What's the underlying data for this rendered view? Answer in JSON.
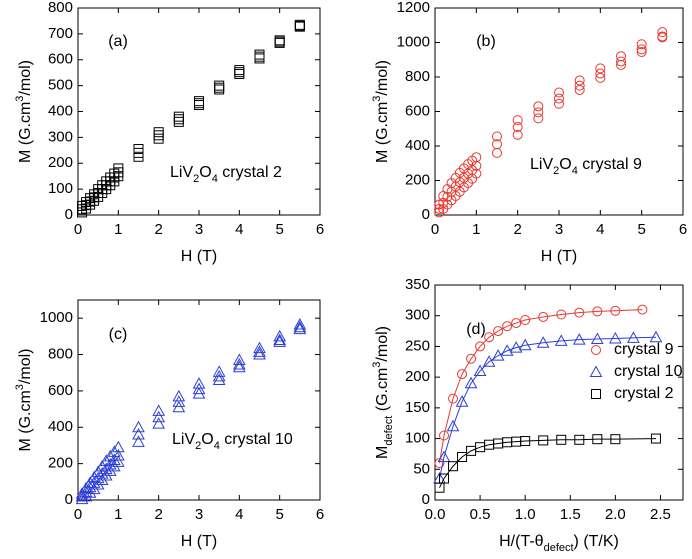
{
  "chart_data": [
    {
      "type": "scatter",
      "panel_label": "(a)",
      "xlabel": "H (T)",
      "ylabel": [
        {
          "text": "M  (G.cm"
        },
        {
          "text": "3",
          "sup": true
        },
        {
          "text": "/mol)"
        }
      ],
      "annotation": [
        {
          "text": "LiV"
        },
        {
          "text": "2",
          "sub": true
        },
        {
          "text": "O"
        },
        {
          "text": "4",
          "sub": true
        },
        {
          "text": " crystal 2"
        }
      ],
      "xlim": [
        0,
        6
      ],
      "xticks": [
        0,
        1,
        2,
        3,
        4,
        5,
        6
      ],
      "ylim": [
        0,
        800
      ],
      "yticks": [
        0,
        100,
        200,
        300,
        400,
        500,
        600,
        700,
        800
      ],
      "x": [
        0.1,
        0.2,
        0.3,
        0.4,
        0.5,
        0.6,
        0.7,
        0.8,
        0.9,
        1.0,
        1.5,
        2,
        2.5,
        3,
        3.5,
        4,
        4.5,
        5,
        5.5
      ],
      "series": [
        {
          "color": "#000000",
          "marker": "square",
          "values": [
            35,
            50,
            65,
            80,
            100,
            115,
            130,
            145,
            160,
            180,
            255,
            320,
            380,
            440,
            500,
            560,
            620,
            675,
            735
          ]
        },
        {
          "color": "#000000",
          "marker": "square",
          "values": [
            22,
            38,
            52,
            68,
            85,
            100,
            115,
            130,
            145,
            165,
            240,
            308,
            370,
            432,
            492,
            552,
            612,
            670,
            731
          ]
        },
        {
          "color": "#000000",
          "marker": "square",
          "values": [
            10,
            25,
            40,
            55,
            70,
            85,
            100,
            115,
            130,
            150,
            225,
            295,
            360,
            425,
            485,
            545,
            605,
            665,
            728
          ]
        }
      ]
    },
    {
      "type": "scatter",
      "panel_label": "(b)",
      "xlabel": "H (T)",
      "ylabel": [
        {
          "text": "M  (G.cm"
        },
        {
          "text": "3",
          "sup": true
        },
        {
          "text": "/mol)"
        }
      ],
      "annotation": [
        {
          "text": "LiV"
        },
        {
          "text": "2",
          "sub": true
        },
        {
          "text": "O"
        },
        {
          "text": "4",
          "sub": true
        },
        {
          "text": " crystal 9"
        }
      ],
      "xlim": [
        0,
        6
      ],
      "xticks": [
        0,
        1,
        2,
        3,
        4,
        5,
        6
      ],
      "ylim": [
        0,
        1200
      ],
      "yticks": [
        0,
        200,
        400,
        600,
        800,
        1000,
        1200
      ],
      "x": [
        0.1,
        0.2,
        0.3,
        0.4,
        0.5,
        0.6,
        0.7,
        0.8,
        0.9,
        1.0,
        1.5,
        2,
        2.5,
        3,
        3.5,
        4,
        4.5,
        5,
        5.5
      ],
      "series": [
        {
          "color": "#e8392f",
          "marker": "circle",
          "values": [
            60,
            110,
            150,
            185,
            215,
            245,
            270,
            295,
            315,
            335,
            455,
            550,
            630,
            710,
            780,
            850,
            920,
            990,
            1060
          ]
        },
        {
          "color": "#e8392f",
          "marker": "circle",
          "values": [
            35,
            70,
            105,
            135,
            165,
            190,
            215,
            240,
            260,
            285,
            410,
            510,
            595,
            675,
            750,
            820,
            890,
            960,
            1035
          ]
        },
        {
          "color": "#e8392f",
          "marker": "circle",
          "values": [
            15,
            35,
            60,
            85,
            110,
            135,
            160,
            185,
            210,
            240,
            360,
            465,
            560,
            645,
            725,
            795,
            870,
            945,
            1030
          ]
        }
      ]
    },
    {
      "type": "scatter",
      "panel_label": "(c)",
      "xlabel": "H (T)",
      "ylabel": [
        {
          "text": "M (G.cm"
        },
        {
          "text": "3",
          "sup": true
        },
        {
          "text": "/mol)"
        }
      ],
      "annotation": [
        {
          "text": "LiV"
        },
        {
          "text": "2",
          "sub": true
        },
        {
          "text": "O"
        },
        {
          "text": "4",
          "sub": true
        },
        {
          "text": " crystal 10"
        }
      ],
      "xlim": [
        0,
        6
      ],
      "xticks": [
        0,
        1,
        2,
        3,
        4,
        5,
        6
      ],
      "ylim": [
        0,
        1100
      ],
      "yticks": [
        0,
        200,
        400,
        600,
        800,
        1000
      ],
      "x": [
        0.1,
        0.2,
        0.3,
        0.4,
        0.5,
        0.6,
        0.7,
        0.8,
        0.9,
        1.0,
        1.5,
        2,
        2.5,
        3,
        3.5,
        4,
        4.5,
        5,
        5.5
      ],
      "series": [
        {
          "color": "#2b3fd6",
          "marker": "triangle",
          "values": [
            35,
            65,
            95,
            125,
            155,
            185,
            215,
            240,
            265,
            290,
            400,
            490,
            570,
            640,
            705,
            770,
            835,
            900,
            965
          ]
        },
        {
          "color": "#2b3fd6",
          "marker": "triangle",
          "values": [
            20,
            45,
            70,
            95,
            120,
            145,
            170,
            195,
            220,
            245,
            360,
            455,
            540,
            610,
            680,
            745,
            815,
            880,
            950
          ]
        },
        {
          "color": "#2b3fd6",
          "marker": "triangle",
          "values": [
            5,
            20,
            40,
            60,
            85,
            110,
            135,
            160,
            185,
            210,
            320,
            420,
            510,
            585,
            660,
            730,
            800,
            870,
            940
          ]
        }
      ]
    },
    {
      "type": "scatter",
      "panel_label": "(d)",
      "xlabel": [
        {
          "text": "H/(T-θ"
        },
        {
          "text": "defect",
          "sub": true
        },
        {
          "text": ")    (T/K)"
        }
      ],
      "ylabel": [
        {
          "text": "M"
        },
        {
          "text": "defect",
          "sub": true
        },
        {
          "text": "  (G.cm"
        },
        {
          "text": "3",
          "sup": true
        },
        {
          "text": "/mol)"
        }
      ],
      "xlim": [
        0,
        2.75
      ],
      "xticks": [
        {
          "value": 0,
          "label": "0.0"
        },
        0.5,
        {
          "value": 1,
          "label": "1.0"
        },
        1.5,
        {
          "value": 2,
          "label": "2.0"
        },
        2.5
      ],
      "ylim": [
        0,
        350
      ],
      "yticks": [
        0,
        50,
        100,
        150,
        200,
        250,
        300,
        350
      ],
      "fit_line": true,
      "series": [
        {
          "name": "crystal 9",
          "color": "#e8392f",
          "marker": "circle",
          "x": [
            0.05,
            0.1,
            0.2,
            0.3,
            0.4,
            0.5,
            0.6,
            0.7,
            0.8,
            0.9,
            1.0,
            1.2,
            1.4,
            1.6,
            1.8,
            2.0,
            2.3
          ],
          "values": [
            60,
            105,
            165,
            205,
            230,
            250,
            265,
            275,
            283,
            288,
            293,
            298,
            302,
            305,
            307,
            308,
            310
          ]
        },
        {
          "name": "crystal 10",
          "color": "#2b3fd6",
          "marker": "triangle",
          "x": [
            0.05,
            0.1,
            0.2,
            0.3,
            0.4,
            0.5,
            0.6,
            0.7,
            0.8,
            0.9,
            1.0,
            1.2,
            1.4,
            1.6,
            1.8,
            2.0,
            2.2,
            2.45
          ],
          "values": [
            35,
            70,
            120,
            160,
            190,
            210,
            225,
            235,
            243,
            248,
            252,
            256,
            259,
            261,
            262,
            263,
            264,
            265
          ]
        },
        {
          "name": "crystal 2",
          "color": "#000000",
          "marker": "square",
          "x": [
            0.05,
            0.1,
            0.2,
            0.3,
            0.4,
            0.5,
            0.6,
            0.7,
            0.8,
            0.9,
            1.0,
            1.2,
            1.4,
            1.6,
            1.8,
            2.0,
            2.45
          ],
          "values": [
            20,
            35,
            55,
            70,
            80,
            86,
            90,
            92,
            94,
            95,
            96,
            97,
            98,
            98,
            99,
            99,
            100
          ]
        }
      ]
    }
  ]
}
